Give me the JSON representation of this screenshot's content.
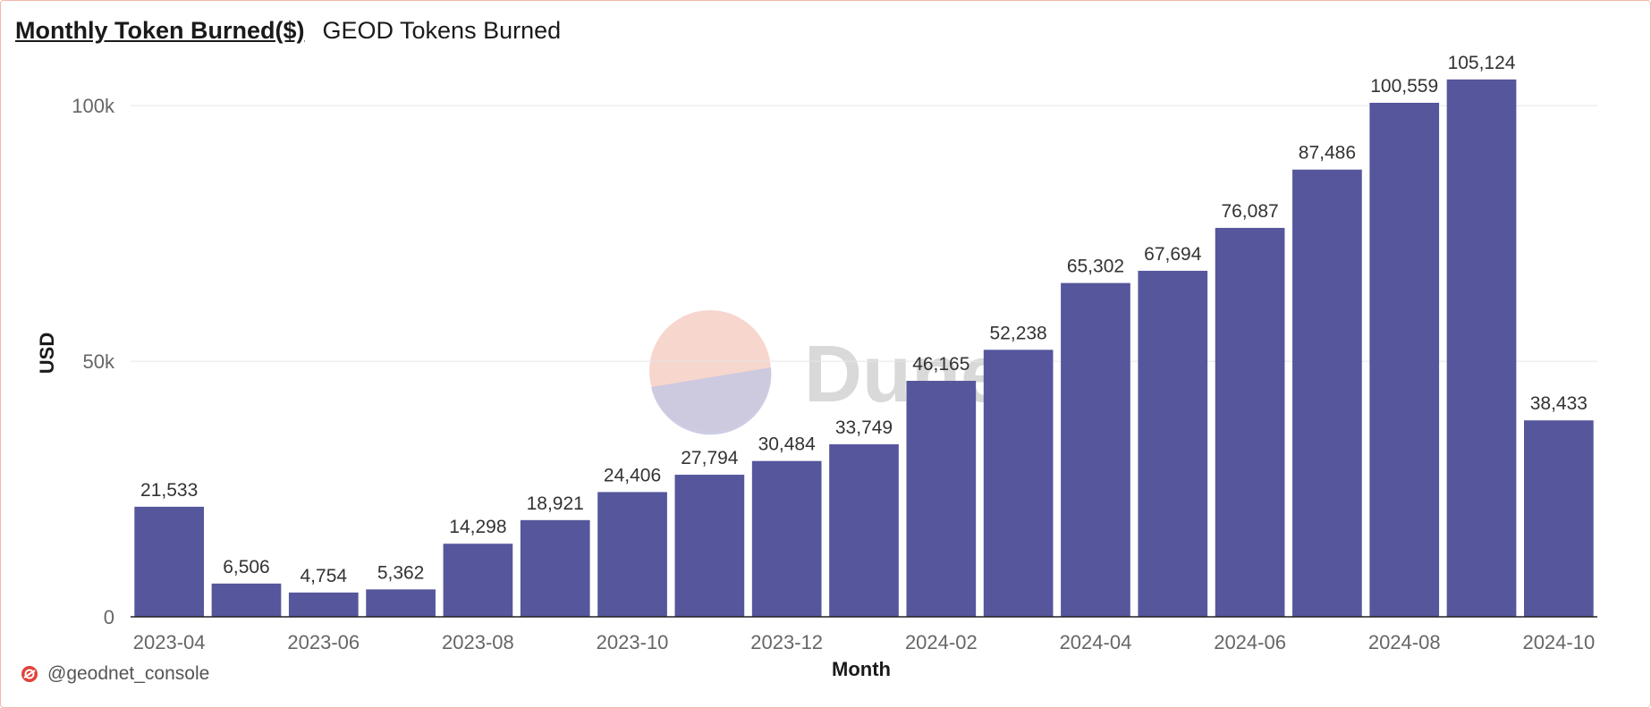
{
  "header": {
    "query_title": "Monthly Token Burned($)",
    "viz_title": "GEOD Tokens Burned"
  },
  "footer": {
    "handle": "@geodnet_console",
    "icon": "dune-logo-icon"
  },
  "watermark": {
    "text": "Dune",
    "icon": "dune-logo-icon"
  },
  "colors": {
    "bar": "#55569b",
    "grid": "#e6e6e6",
    "axis_text": "#666666",
    "label_text": "#333333",
    "border": "#f2b8a8",
    "watermark_pink": "#f6cfc6",
    "watermark_purple": "#c8c8e0"
  },
  "chart_data": {
    "type": "bar",
    "xlabel": "Month",
    "ylabel": "USD",
    "ylim": [
      0,
      110000
    ],
    "yticks": [
      0,
      50000,
      100000
    ],
    "ytick_labels": [
      "0",
      "50k",
      "100k"
    ],
    "grid": true,
    "categories": [
      "2023-04",
      "2023-05",
      "2023-06",
      "2023-07",
      "2023-08",
      "2023-09",
      "2023-10",
      "2023-11",
      "2023-12",
      "2024-01",
      "2024-02",
      "2024-03",
      "2024-04",
      "2024-05",
      "2024-06",
      "2024-07",
      "2024-08",
      "2024-09",
      "2024-10"
    ],
    "xtick_labels": [
      "2023-04",
      "",
      "2023-06",
      "",
      "2023-08",
      "",
      "2023-10",
      "",
      "2023-12",
      "",
      "2024-02",
      "",
      "2024-04",
      "",
      "2024-06",
      "",
      "2024-08",
      "",
      "2024-10"
    ],
    "values": [
      21533,
      6506,
      4754,
      5362,
      14298,
      18921,
      24406,
      27794,
      30484,
      33749,
      46165,
      52238,
      65302,
      67694,
      76087,
      87486,
      100559,
      105124,
      38433
    ],
    "data_labels": [
      "21,533",
      "6,506",
      "4,754",
      "5,362",
      "14,298",
      "18,921",
      "24,406",
      "27,794",
      "30,484",
      "33,749",
      "46,165",
      "52,238",
      "65,302",
      "67,694",
      "76,087",
      "87,486",
      "100,559",
      "105,124",
      "38,433"
    ]
  }
}
